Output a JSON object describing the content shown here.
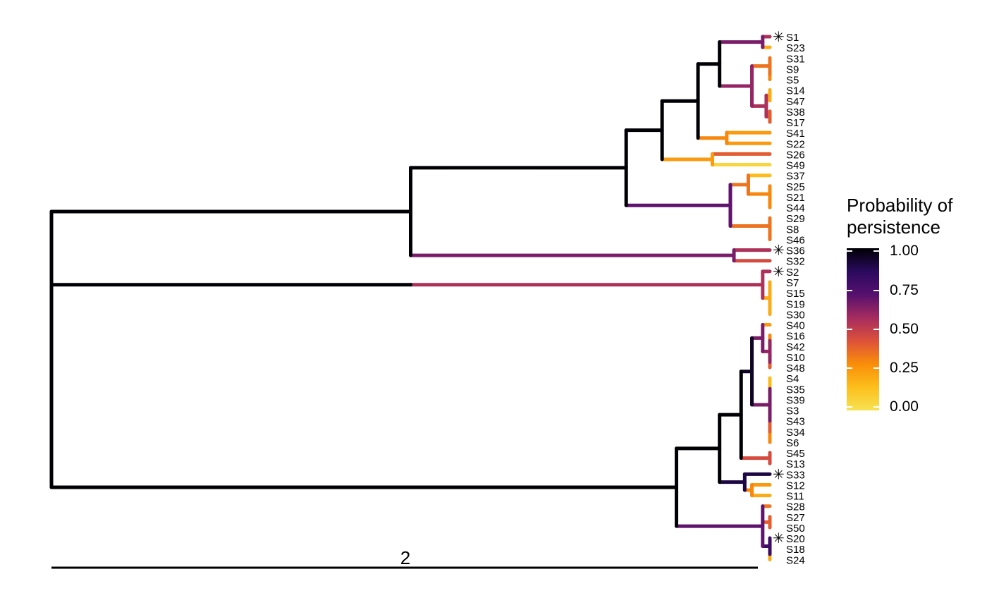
{
  "legend": {
    "title_line1": "Probability of",
    "title_line2": "persistence",
    "ticks": [
      "1.00",
      "0.75",
      "0.50",
      "0.25",
      "0.00"
    ],
    "gradient_colors": [
      "#000004",
      "#2a0a5e",
      "#56106e",
      "#a52c60",
      "#dd513a",
      "#f98e09",
      "#fcbf1c",
      "#f6e252"
    ]
  },
  "scale_bar": {
    "label": "2"
  },
  "tips": [
    {
      "label": "S1",
      "p": 0.55,
      "marker": true
    },
    {
      "label": "S23",
      "p": 0.2
    },
    {
      "label": "S31",
      "p": 0.35
    },
    {
      "label": "S9",
      "p": 0.3
    },
    {
      "label": "S5",
      "p": 0.15
    },
    {
      "label": "S14",
      "p": 0.25
    },
    {
      "label": "S47",
      "p": 0.02
    },
    {
      "label": "S38",
      "p": 0.4
    },
    {
      "label": "S17",
      "p": 0.35
    },
    {
      "label": "S41",
      "p": 0.25
    },
    {
      "label": "S22",
      "p": 0.25
    },
    {
      "label": "S26",
      "p": 0.4
    },
    {
      "label": "S49",
      "p": 0.05
    },
    {
      "label": "S37",
      "p": 0.15
    },
    {
      "label": "S25",
      "p": 0.35
    },
    {
      "label": "S21",
      "p": 0.1
    },
    {
      "label": "S44",
      "p": 0.35
    },
    {
      "label": "S29",
      "p": 0.15
    },
    {
      "label": "S8",
      "p": 0.2
    },
    {
      "label": "S46",
      "p": 0.3
    },
    {
      "label": "S36",
      "p": 0.55,
      "marker": true
    },
    {
      "label": "S32",
      "p": 0.45
    },
    {
      "label": "S2",
      "p": 0.55,
      "marker": true
    },
    {
      "label": "S7",
      "p": 0.2
    },
    {
      "label": "S15",
      "p": 0.2
    },
    {
      "label": "S19",
      "p": 0.6
    },
    {
      "label": "S30",
      "p": 0.4
    },
    {
      "label": "S40",
      "p": 0.25
    },
    {
      "label": "S16",
      "p": 0.35
    },
    {
      "label": "S42",
      "p": 0.35
    },
    {
      "label": "S10",
      "p": 0.4
    },
    {
      "label": "S48",
      "p": 0.35
    },
    {
      "label": "S4",
      "p": 0.05
    },
    {
      "label": "S35",
      "p": 0.05
    },
    {
      "label": "S39",
      "p": 0.15
    },
    {
      "label": "S3",
      "p": 0.35
    },
    {
      "label": "S43",
      "p": 0.2
    },
    {
      "label": "S34",
      "p": 0.15
    },
    {
      "label": "S6",
      "p": 0.3
    },
    {
      "label": "S45",
      "p": 0.45
    },
    {
      "label": "S13",
      "p": 0.35
    },
    {
      "label": "S33",
      "p": 0.9,
      "marker": true
    },
    {
      "label": "S12",
      "p": 0.25
    },
    {
      "label": "S11",
      "p": 0.2
    },
    {
      "label": "S28",
      "p": 0.35
    },
    {
      "label": "S27",
      "p": 0.25
    },
    {
      "label": "S50",
      "p": 0.35
    },
    {
      "label": "S20",
      "p": 0.9,
      "marker": true
    },
    {
      "label": "S18",
      "p": 0.2
    },
    {
      "label": "S24",
      "p": 0.2
    }
  ],
  "tree": {
    "p": 1.0,
    "h": 0.0,
    "children": [
      {
        "p": 1.0,
        "h": 0.5,
        "children": [
          {
            "p": 1.0,
            "h": 0.8,
            "children": [
              {
                "p": 1.0,
                "h": 0.85,
                "children": [
                  {
                    "p": 1.0,
                    "h": 0.9,
                    "children": [
                      {
                        "p": 1.0,
                        "h": 0.93,
                        "children": [
                          {
                            "p": 0.65,
                            "h": 0.99,
                            "children": [
                              0,
                              1
                            ]
                          },
                          {
                            "p": 0.6,
                            "h": 0.975,
                            "children": [
                              {
                                "p": 0.35,
                                "h": 1.0,
                                "children": [
                                  2,
                                  {
                                    "p": 0.3,
                                    "h": 1.0,
                                    "children": [
                                      3,
                                      4
                                    ]
                                  }
                                ]
                              },
                              {
                                "p": 0.55,
                                "h": 0.995,
                                "children": [
                                  {
                                    "p": 0.2,
                                    "h": 1.0,
                                    "children": [
                                      5,
                                      6
                                    ]
                                  },
                                  {
                                    "p": 0.4,
                                    "h": 1.0,
                                    "children": [
                                      7,
                                      8
                                    ]
                                  }
                                ]
                              }
                            ]
                          }
                        ]
                      },
                      {
                        "p": 0.3,
                        "h": 0.94,
                        "children": [
                          9,
                          10
                        ]
                      }
                    ]
                  },
                  {
                    "p": 0.25,
                    "h": 0.92,
                    "children": [
                      11,
                      12
                    ]
                  }
                ]
              },
              {
                "p": 0.7,
                "h": 0.945,
                "children": [
                  {
                    "p": 0.35,
                    "h": 0.97,
                    "children": [
                      13,
                      {
                        "p": 0.3,
                        "h": 1.0,
                        "children": [
                          14,
                          {
                            "p": 0.3,
                            "h": 1.0,
                            "children": [
                              15,
                              16
                            ]
                          }
                        ]
                      }
                    ]
                  },
                  {
                    "p": 0.35,
                    "h": 1.0,
                    "children": [
                      17,
                      {
                        "p": 0.35,
                        "h": 1.0,
                        "children": [
                          18,
                          19
                        ]
                      }
                    ]
                  }
                ]
              }
            ]
          },
          {
            "p": 0.65,
            "h": 0.95,
            "children": [
              20,
              21
            ]
          }
        ]
      },
      {
        "p": 1.0,
        "h": 0.87,
        "children": [
          {
            "p": 1.0,
            "h": 0.93,
            "children": [
              {
                "p": 1.0,
                "h": 0.96,
                "children": [
                  {
                    "p": 0.95,
                    "h": 0.975,
                    "children": [
                      {
                        "p": 0.65,
                        "h": 0.99,
                        "children": [
                          27,
                          {
                            "p": 0.6,
                            "h": 1.0,
                            "children": [
                              {
                                "p": 0.3,
                                "h": 1.0,
                                "children": [
                                  28,
                                  29
                                ]
                              },
                              {
                                "p": 0.4,
                                "h": 1.0,
                                "children": [
                                  30,
                                  31
                                ]
                              }
                            ]
                          }
                        ]
                      },
                      {
                        "p": 0.65,
                        "h": 1.0,
                        "children": [
                          {
                            "p": 0.15,
                            "h": 1.0,
                            "children": [
                              32,
                              33,
                              34
                            ]
                          },
                          {
                            "p": 0.4,
                            "h": 1.0,
                            "children": [
                              35,
                              {
                                "p": 0.3,
                                "h": 1.0,
                                "children": [
                                  36,
                                  37,
                                  38
                                ]
                              }
                            ]
                          }
                        ]
                      }
                    ]
                  },
                  {
                    "p": 0.45,
                    "h": 1.0,
                    "children": [
                      39,
                      40
                    ]
                  }
                ]
              },
              {
                "p": 0.9,
                "h": 0.965,
                "children": [
                  41,
                  {
                    "p": 0.3,
                    "h": 0.975,
                    "children": [
                      42,
                      43
                    ]
                  }
                ]
              }
            ]
          },
          {
            "p": 0.7,
            "h": 0.99,
            "children": [
              44,
              {
                "p": 0.4,
                "h": 1.0,
                "children": [
                  45,
                  46
                ]
              },
              {
                "p": 0.8,
                "h": 1.0,
                "children": [
                  47,
                  {
                    "p": 0.2,
                    "h": 1.0,
                    "children": [
                      48,
                      49
                    ]
                  }
                ]
              }
            ]
          }
        ]
      },
      {
        "p": 1.0,
        "h": 0.5,
        "children": [
          {
            "p": 0.55,
            "h": 0.99,
            "children": [
              22,
              {
                "p": 0.2,
                "h": 1.0,
                "children": [
                  23,
                  24,
                  25,
                  26
                ]
              }
            ]
          }
        ]
      }
    ]
  }
}
